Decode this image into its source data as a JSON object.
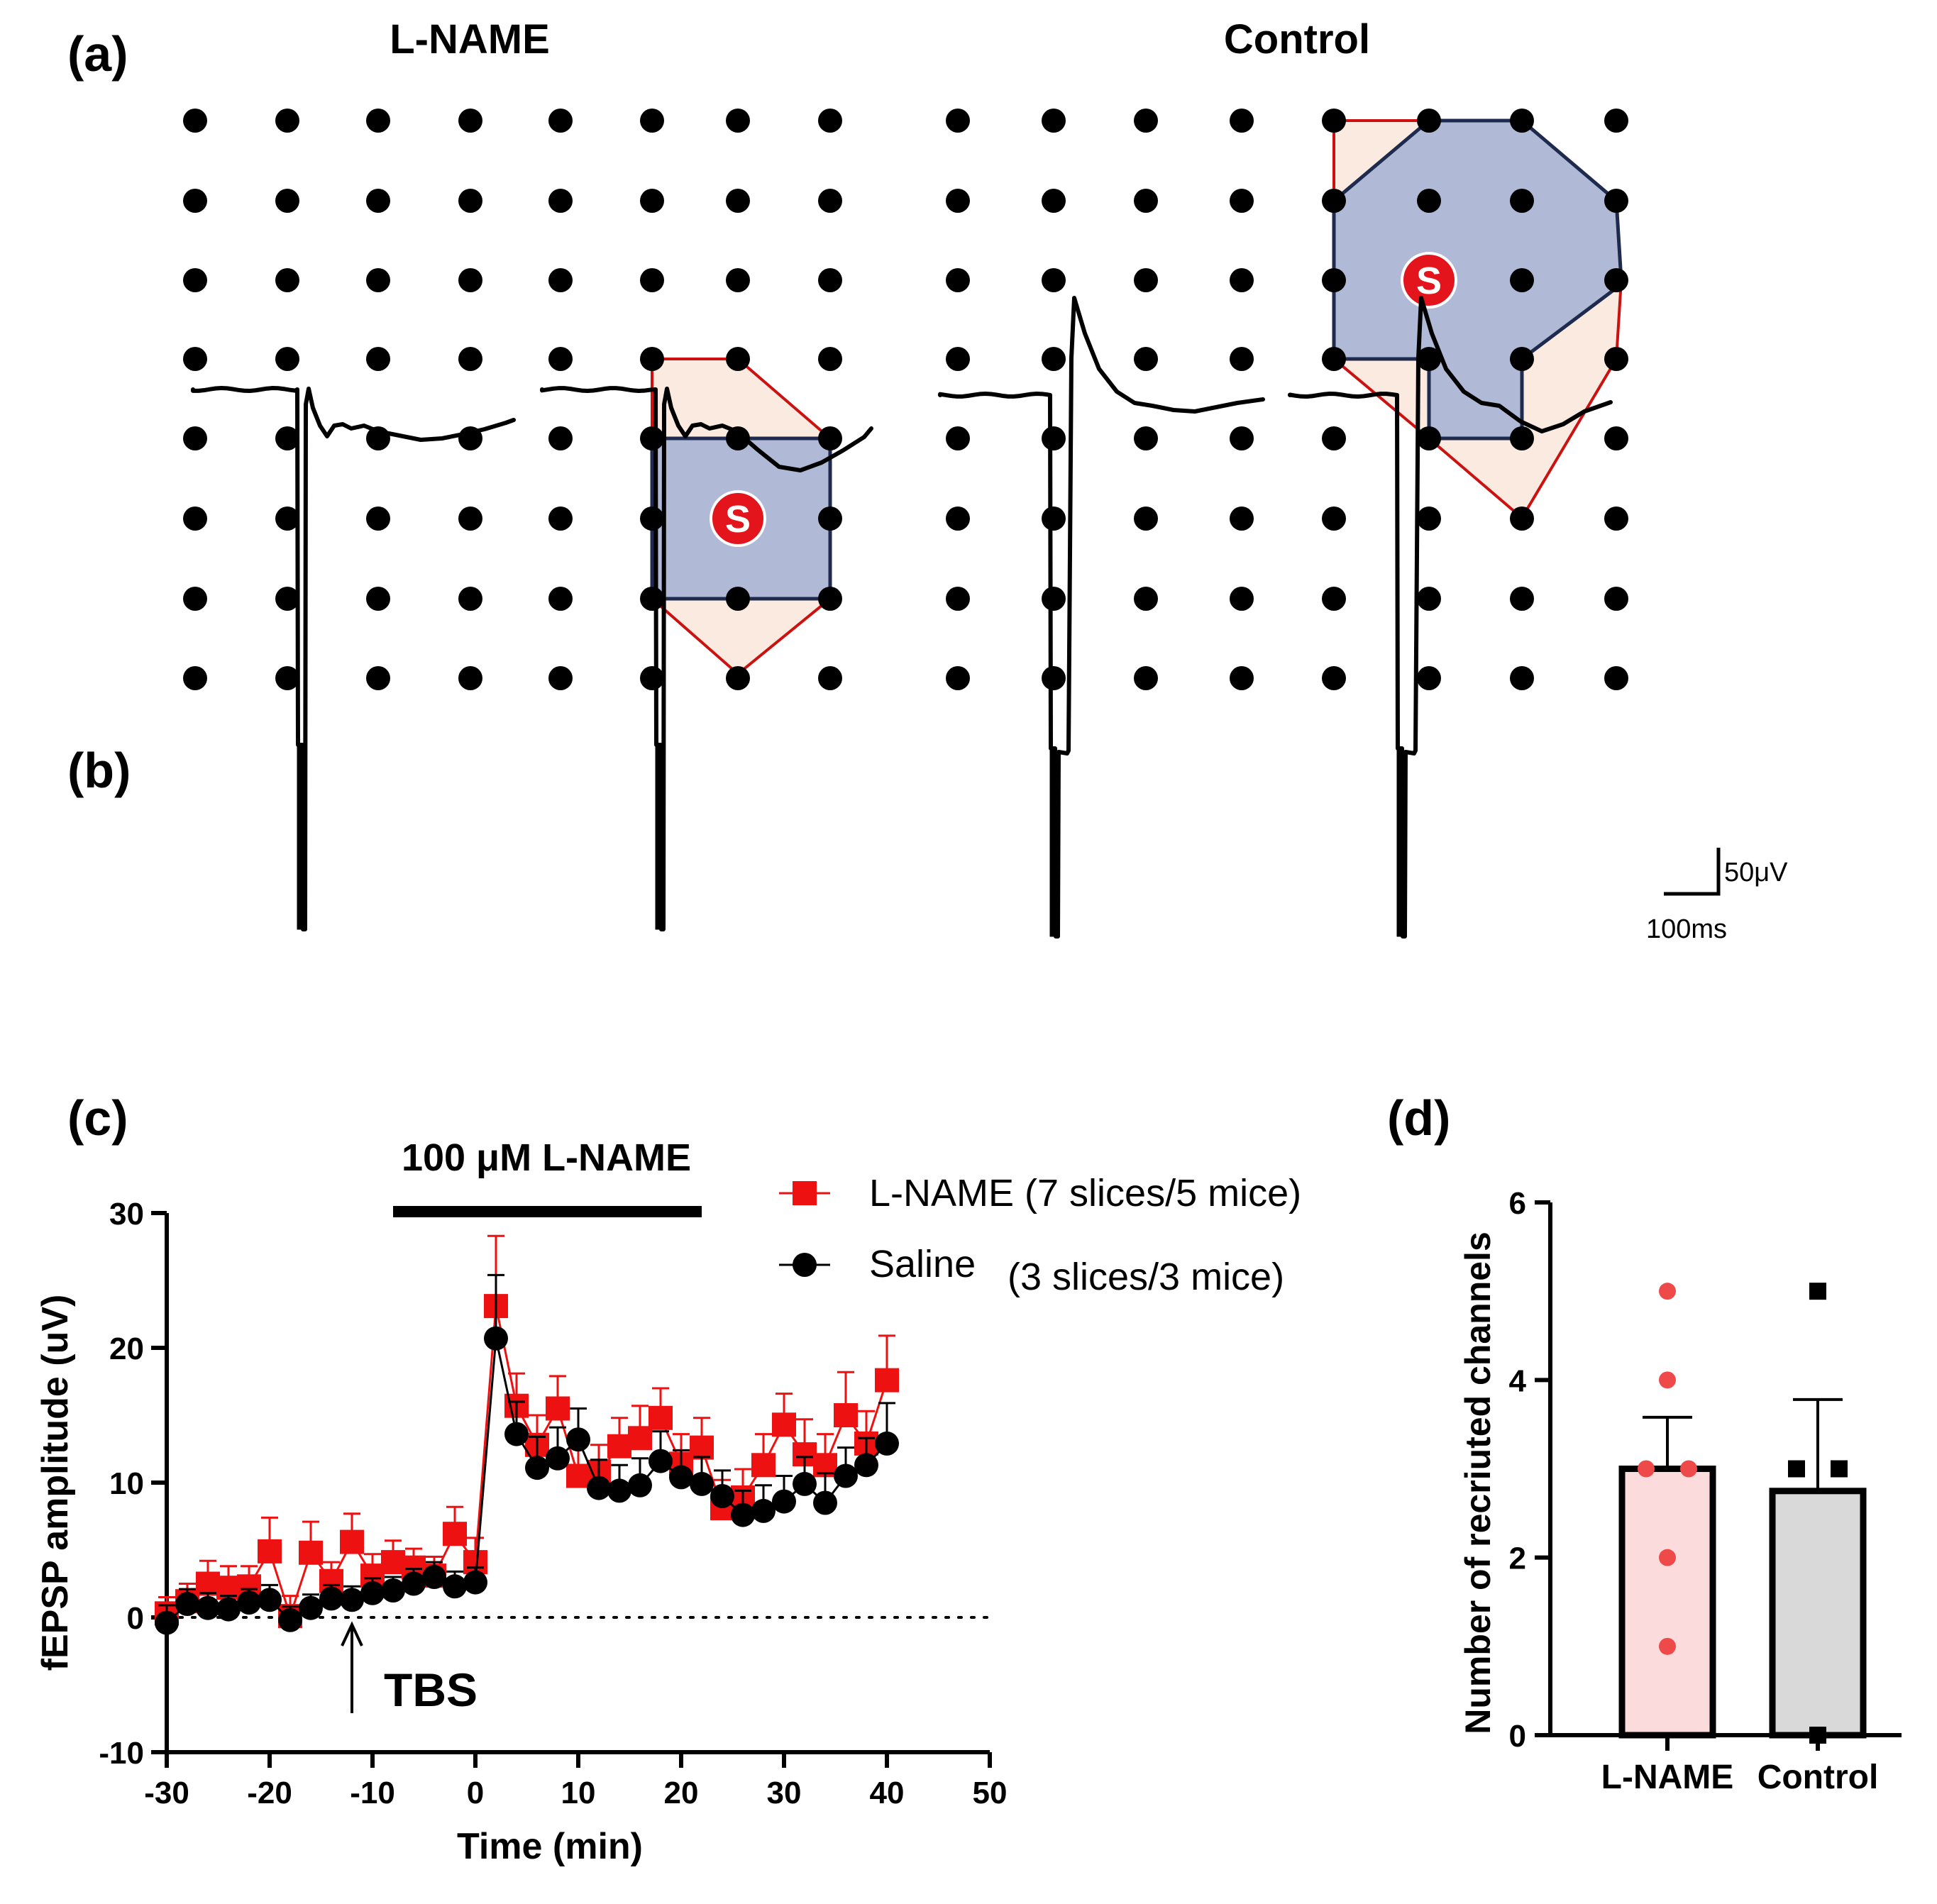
{
  "panel_labels": {
    "a": "(a)",
    "b": "(b)",
    "c": "(c)",
    "d": "(d)"
  },
  "panel_a": {
    "lname_title": "L-NAME",
    "control_title": "Control",
    "stim_label": "S",
    "grid_rows": 8,
    "grid_cols": 8,
    "colors": {
      "dot": "#000000",
      "core_fill": "#b0bad6",
      "core_edge": "#1e2a4e",
      "halo_fill": "#faeadf",
      "halo_edge": "#cc1111",
      "stim": "#e3141b"
    }
  },
  "panel_b": {
    "scale_v_label": "50μV",
    "scale_t_label": "100ms",
    "scale_v_value_uV": 50,
    "scale_t_value_ms": 100
  },
  "chart_data": [
    {
      "type": "scatter",
      "panel": "c",
      "title": "100 μM L-NAME",
      "xlabel": "Time (min)",
      "ylabel": "fEPSP amplitude (uV)",
      "xlim": [
        -30,
        50
      ],
      "ylim": [
        -10,
        30
      ],
      "xticks": [
        -30,
        -20,
        -10,
        0,
        10,
        20,
        30,
        40,
        50
      ],
      "yticks": [
        -10,
        0,
        10,
        20,
        30
      ],
      "drug_bar_range_min": [
        -8,
        22
      ],
      "baseline_y": 0,
      "annotation": {
        "text": "TBS",
        "x": -12
      },
      "series": [
        {
          "name": "L-NAME",
          "legend_label": "L-NAME (7 slices/5 mice)",
          "marker": "square",
          "color": "#ee1111",
          "x": [
            -30,
            -28,
            -26,
            -24,
            -22,
            -20,
            -18,
            -16,
            -14,
            -12,
            -10,
            -8,
            -6,
            -4,
            -2,
            0,
            2,
            4,
            6,
            8,
            10,
            12,
            14,
            16,
            18,
            20,
            22,
            24,
            26,
            28,
            30,
            32,
            34,
            36,
            38,
            40
          ],
          "y": [
            0.3,
            1.2,
            2.5,
            2.2,
            2.3,
            4.9,
            0.1,
            4.8,
            2.7,
            5.6,
            3.1,
            4.1,
            3.7,
            3.1,
            6.2,
            4.1,
            23.1,
            15.7,
            12.8,
            15.5,
            10.5,
            10.8,
            12.7,
            13.3,
            14.8,
            11.4,
            12.6,
            8.1,
            8.9,
            11.3,
            14.3,
            12.1,
            11.3,
            15.0,
            12.9,
            17.6
          ],
          "err": [
            1.2,
            1.3,
            1.7,
            1.6,
            1.5,
            2.5,
            1.5,
            2.3,
            1.4,
            2.1,
            1.6,
            1.6,
            1.4,
            1.4,
            2.0,
            1.8,
            5.2,
            2.4,
            2.2,
            2.4,
            2.2,
            2.0,
            2.1,
            2.4,
            2.2,
            2.2,
            2.2,
            2.1,
            2.1,
            2.3,
            2.3,
            2.6,
            2.3,
            3.2,
            2.4,
            3.3
          ]
        },
        {
          "name": "Saline",
          "legend_label": "Saline",
          "legend_label_extra": "(3 slices/3 mice)",
          "marker": "circle",
          "color": "#000000",
          "x": [
            -30,
            -28,
            -26,
            -24,
            -22,
            -20,
            -18,
            -16,
            -14,
            -12,
            -10,
            -8,
            -6,
            -4,
            -2,
            0,
            2,
            4,
            6,
            8,
            10,
            12,
            14,
            16,
            18,
            20,
            22,
            24,
            26,
            28,
            30,
            32,
            34,
            36,
            38,
            40
          ],
          "y": [
            -0.4,
            1.0,
            0.7,
            0.6,
            1.1,
            1.3,
            -0.2,
            0.7,
            1.4,
            1.3,
            1.8,
            2.0,
            2.5,
            3.0,
            2.3,
            2.6,
            20.7,
            13.6,
            11.1,
            11.8,
            13.2,
            9.6,
            9.4,
            9.8,
            11.6,
            10.4,
            9.9,
            9.0,
            7.6,
            7.9,
            8.6,
            9.9,
            8.5,
            10.5,
            11.3,
            12.9
          ],
          "err": [
            1.3,
            1.1,
            1.1,
            1.0,
            1.0,
            1.1,
            1.0,
            1.0,
            1.0,
            1.0,
            1.1,
            1.0,
            1.1,
            1.1,
            1.1,
            1.1,
            4.7,
            2.4,
            2.3,
            2.3,
            2.3,
            2.1,
            1.9,
            2.0,
            2.2,
            2.0,
            2.0,
            1.9,
            1.8,
            1.9,
            1.9,
            2.0,
            2.2,
            2.1,
            2.0,
            3.0
          ]
        }
      ]
    },
    {
      "type": "bar",
      "panel": "d",
      "categories": [
        "L-NAME",
        "Control"
      ],
      "values": [
        3.0,
        2.75
      ],
      "sem": [
        0.58,
        1.03
      ],
      "ylabel": "Number of recriuted channels",
      "ylim": [
        0,
        6
      ],
      "yticks": [
        0,
        2,
        4,
        6
      ],
      "bar_colors": [
        "#fbdbdb",
        "#d9d9d9"
      ],
      "points": [
        {
          "category": "L-NAME",
          "marker": "circle",
          "color": "#ef4a4a",
          "values": [
            5,
            4,
            3,
            3,
            2,
            1
          ]
        },
        {
          "category": "Control",
          "marker": "square",
          "color": "#000000",
          "values": [
            5,
            3,
            3,
            0
          ]
        }
      ]
    }
  ]
}
